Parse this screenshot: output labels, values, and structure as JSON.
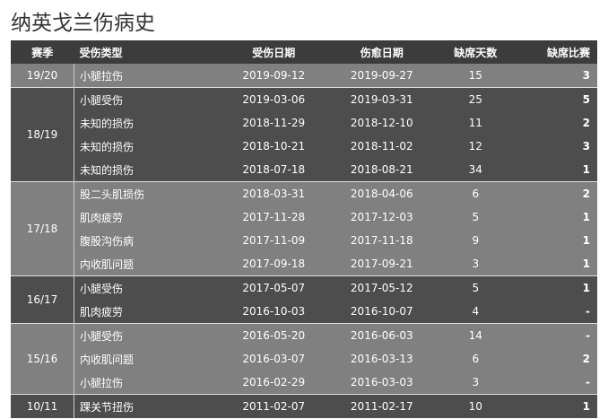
{
  "header": {
    "title": "纳英戈兰伤病史"
  },
  "table": {
    "columns": [
      "赛季",
      "受伤类型",
      "受伤日期",
      "伤愈日期",
      "缺席天数",
      "缺席比赛"
    ],
    "groups": [
      {
        "season": "19/20",
        "rows": [
          [
            "小腿拉伤",
            "2019-09-12",
            "2019-09-27",
            "15",
            "3"
          ]
        ]
      },
      {
        "season": "18/19",
        "rows": [
          [
            "小腿受伤",
            "2019-03-06",
            "2019-03-31",
            "25",
            "5"
          ],
          [
            "未知的损伤",
            "2018-11-29",
            "2018-12-10",
            "11",
            "2"
          ],
          [
            "未知的损伤",
            "2018-10-21",
            "2018-11-02",
            "12",
            "3"
          ],
          [
            "未知的损伤",
            "2018-07-18",
            "2018-08-21",
            "34",
            "1"
          ]
        ]
      },
      {
        "season": "17/18",
        "rows": [
          [
            "股二头肌损伤",
            "2018-03-31",
            "2018-04-06",
            "6",
            "2"
          ],
          [
            "肌肉疲劳",
            "2017-11-28",
            "2017-12-03",
            "5",
            "1"
          ],
          [
            "腹股沟伤病",
            "2017-11-09",
            "2017-11-18",
            "9",
            "1"
          ],
          [
            "内收肌问题",
            "2017-09-18",
            "2017-09-21",
            "3",
            "1"
          ]
        ]
      },
      {
        "season": "16/17",
        "rows": [
          [
            "小腿受伤",
            "2017-05-07",
            "2017-05-12",
            "5",
            "1"
          ],
          [
            "肌肉疲劳",
            "2016-10-03",
            "2016-10-07",
            "4",
            "-"
          ]
        ]
      },
      {
        "season": "15/16",
        "rows": [
          [
            "小腿受伤",
            "2016-05-20",
            "2016-06-03",
            "14",
            "-"
          ],
          [
            "内收肌问题",
            "2016-03-07",
            "2016-03-13",
            "6",
            "2"
          ],
          [
            "小腿拉伤",
            "2016-02-29",
            "2016-03-03",
            "3",
            "-"
          ]
        ]
      },
      {
        "season": "10/11",
        "rows": [
          [
            "踝关节扭伤",
            "2011-02-07",
            "2011-02-17",
            "10",
            "1"
          ]
        ]
      }
    ]
  }
}
